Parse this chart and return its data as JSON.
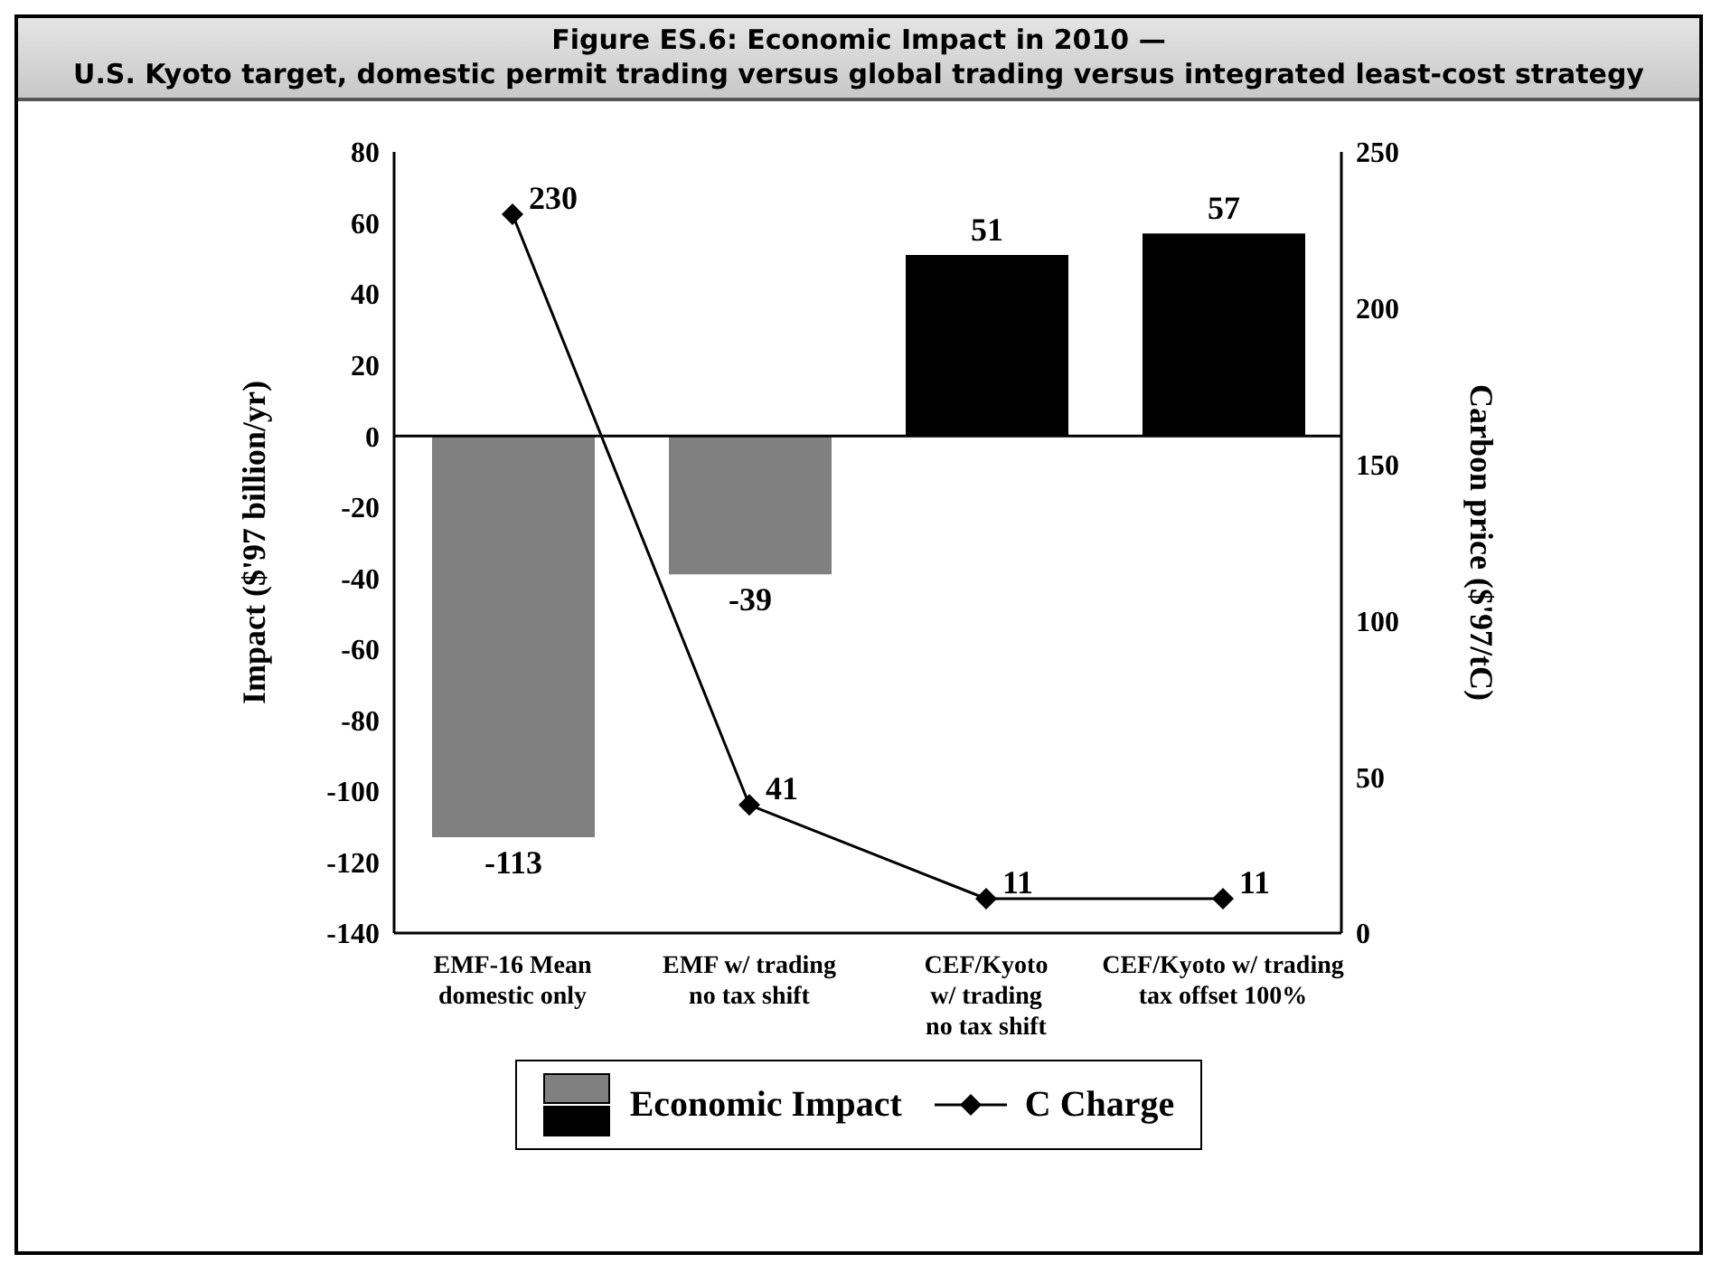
{
  "chart_data": {
    "type": "bar",
    "title": "Figure ES.6: Economic Impact in 2010 —",
    "subtitle": "U.S. Kyoto target, domestic permit trading versus global trading versus integrated least-cost strategy",
    "categories": [
      "EMF-16 Mean\ndomestic only",
      "EMF w/ trading\nno tax shift",
      "CEF/Kyoto\nw/ trading\nno tax shift",
      "CEF/Kyoto w/ trading\ntax offset 100%"
    ],
    "series": [
      {
        "name": "Economic Impact",
        "color": "#000000",
        "colors": [
          "#808080",
          "#808080",
          "#000000",
          "#000000"
        ],
        "values": [
          -113,
          -39,
          51,
          57
        ]
      },
      {
        "name": "C Charge",
        "type": "line",
        "axis": "y2",
        "color": "#000000",
        "marker": "diamond",
        "values": [
          230,
          41,
          11,
          11
        ]
      }
    ],
    "ylabel": "Impact ($'97 billion/yr)",
    "y2label": "Carbon price ($'97/tC)",
    "ylim": [
      -140,
      80
    ],
    "yticks": [
      -140,
      -120,
      -100,
      -80,
      -60,
      -40,
      -20,
      0,
      20,
      40,
      60,
      80
    ],
    "y2lim": [
      0,
      250
    ],
    "y2ticks": [
      0,
      50,
      100,
      150,
      200,
      250
    ],
    "ref_lines": [
      {
        "axis": "y",
        "value": 0
      }
    ],
    "data_labels": true,
    "legend": "bottom"
  }
}
